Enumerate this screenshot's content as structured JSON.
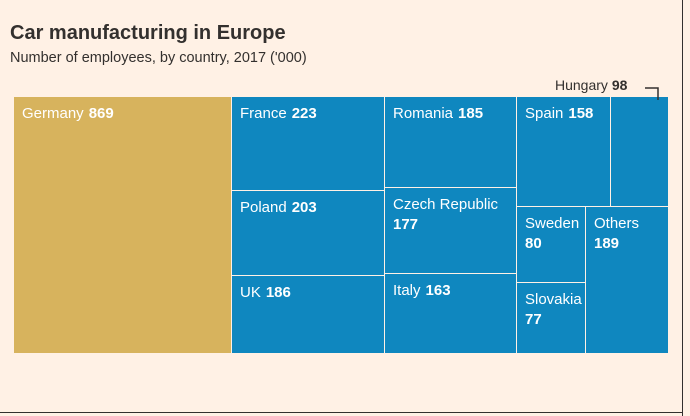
{
  "header": {
    "title": "Car manufacturing in Europe",
    "subtitle": "Number of employees, by country, 2017 ('000)"
  },
  "chart_data": {
    "type": "treemap",
    "title": "Car manufacturing in Europe",
    "subtitle": "Number of employees, by country, 2017 ('000)",
    "unit": "'000 employees",
    "items": [
      {
        "name": "Germany",
        "value": 869,
        "color": "#d7b35d",
        "label_mode": "inline"
      },
      {
        "name": "France",
        "value": 223,
        "color": "#0f87bf",
        "label_mode": "inline"
      },
      {
        "name": "Poland",
        "value": 203,
        "color": "#0f87bf",
        "label_mode": "inline"
      },
      {
        "name": "UK",
        "value": 186,
        "color": "#0f87bf",
        "label_mode": "inline"
      },
      {
        "name": "Romania",
        "value": 185,
        "color": "#0f87bf",
        "label_mode": "inline"
      },
      {
        "name": "Czech Republic",
        "value": 177,
        "color": "#0f87bf",
        "label_mode": "stacked"
      },
      {
        "name": "Italy",
        "value": 163,
        "color": "#0f87bf",
        "label_mode": "inline"
      },
      {
        "name": "Spain",
        "value": 158,
        "color": "#0f87bf",
        "label_mode": "inline"
      },
      {
        "name": "Hungary",
        "value": 98,
        "color": "#0f87bf",
        "label_mode": "callout"
      },
      {
        "name": "Sweden",
        "value": 80,
        "color": "#0f87bf",
        "label_mode": "stacked"
      },
      {
        "name": "Others",
        "value": 189,
        "color": "#0f87bf",
        "label_mode": "stacked"
      },
      {
        "name": "Slovakia",
        "value": 77,
        "color": "#0f87bf",
        "label_mode": "stacked"
      }
    ]
  }
}
